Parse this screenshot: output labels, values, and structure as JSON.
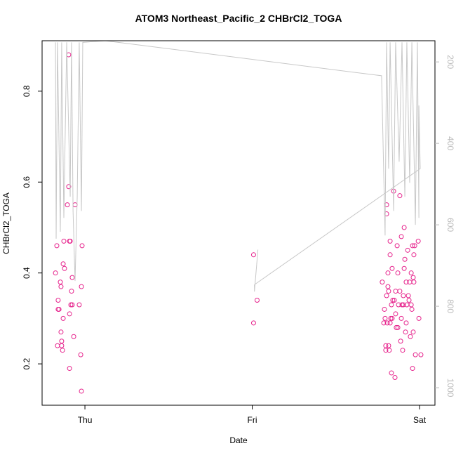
{
  "chart_data": {
    "type": "scatter",
    "title": "ATOM3 Northeast_Pacific_2 CHBrCl2_TOGA",
    "x_label": "Date",
    "y_label": "CHBrCl2_TOGA",
    "xlim": [
      -0.256,
      2.092
    ],
    "xticks": [
      {
        "value": 0,
        "label": "Thu"
      },
      {
        "value": 1,
        "label": "Fri"
      },
      {
        "value": 2,
        "label": "Sat"
      }
    ],
    "ylim": [
      0.109,
      0.911
    ],
    "yticks": [
      0.2,
      0.4,
      0.6,
      0.8
    ],
    "y2lim": [
      1043,
      148
    ],
    "y2ticks": [
      200,
      400,
      600,
      800,
      1000
    ],
    "y2_color": "#bbbbbb",
    "series": [
      {
        "type": "scatter",
        "color": "#e6238c",
        "x": [
          -0.176,
          -0.168,
          -0.164,
          -0.16,
          -0.16,
          -0.155,
          -0.147,
          -0.143,
          -0.143,
          -0.139,
          -0.139,
          -0.134,
          -0.13,
          -0.13,
          -0.126,
          -0.122,
          -0.105,
          -0.097,
          -0.097,
          -0.092,
          -0.088,
          -0.092,
          -0.092,
          -0.084,
          -0.08,
          -0.076,
          -0.076,
          -0.067,
          -0.059,
          -0.034,
          -0.025,
          -0.021,
          -0.017,
          -0.021,
          1.008,
          1.008,
          1.029,
          1.777,
          1.786,
          1.79,
          1.794,
          1.798,
          1.798,
          1.803,
          1.803,
          1.803,
          1.807,
          1.811,
          1.811,
          1.815,
          1.815,
          1.819,
          1.824,
          1.824,
          1.824,
          1.828,
          1.832,
          1.832,
          1.836,
          1.836,
          1.84,
          1.845,
          1.849,
          1.853,
          1.857,
          1.857,
          1.861,
          1.866,
          1.87,
          1.87,
          1.874,
          1.882,
          1.882,
          1.887,
          1.891,
          1.891,
          1.895,
          1.899,
          1.903,
          1.903,
          1.908,
          1.908,
          1.912,
          1.916,
          1.92,
          1.92,
          1.924,
          1.929,
          1.933,
          1.937,
          1.941,
          1.945,
          1.95,
          1.95,
          1.954,
          1.958,
          1.958,
          1.962,
          1.962,
          1.966,
          1.966,
          1.971,
          1.975,
          1.996,
          1.992,
          2.008
        ],
        "values": [
          0.4,
          0.46,
          0.24,
          0.32,
          0.34,
          0.32,
          0.38,
          0.27,
          0.37,
          0.25,
          0.24,
          0.23,
          0.42,
          0.3,
          0.47,
          0.41,
          0.55,
          0.88,
          0.59,
          0.47,
          0.47,
          0.31,
          0.19,
          0.33,
          0.36,
          0.39,
          0.33,
          0.26,
          0.55,
          0.33,
          0.22,
          0.37,
          0.46,
          0.14,
          0.44,
          0.29,
          0.34,
          0.38,
          0.29,
          0.32,
          0.3,
          0.24,
          0.23,
          0.55,
          0.53,
          0.35,
          0.29,
          0.4,
          0.37,
          0.24,
          0.36,
          0.23,
          0.47,
          0.44,
          0.29,
          0.3,
          0.18,
          0.33,
          0.3,
          0.41,
          0.34,
          0.58,
          0.34,
          0.17,
          0.31,
          0.36,
          0.28,
          0.46,
          0.28,
          0.4,
          0.33,
          0.57,
          0.36,
          0.25,
          0.48,
          0.3,
          0.33,
          0.23,
          0.35,
          0.33,
          0.5,
          0.41,
          0.43,
          0.27,
          0.38,
          0.29,
          0.33,
          0.45,
          0.35,
          0.34,
          0.38,
          0.26,
          0.4,
          0.33,
          0.32,
          0.19,
          0.46,
          0.39,
          0.27,
          0.44,
          0.38,
          0.46,
          0.22,
          0.3,
          0.47,
          0.22
        ]
      },
      {
        "type": "line",
        "axis": "y2",
        "color": "#c8c8c8",
        "x": [
          -0.176,
          -0.172,
          -0.164,
          -0.147,
          -0.139,
          -0.126,
          -0.109,
          -0.088,
          -0.08,
          -0.071,
          -0.059,
          -0.046,
          -0.034,
          -0.021,
          -0.013,
          0.122,
          1.773,
          1.794,
          1.803,
          1.815,
          1.824,
          1.845,
          1.857,
          1.878,
          1.895,
          1.912,
          1.924,
          1.941,
          1.954,
          1.975,
          1.987,
          1.996,
          1.996,
          2.004,
          1.013,
          1.013,
          1.034
        ],
        "values": [
          152,
          634,
          152,
          617,
          152,
          583,
          152,
          531,
          152,
          566,
          738,
          531,
          152,
          566,
          152,
          148,
          234,
          626,
          152,
          462,
          152,
          566,
          152,
          445,
          152,
          531,
          152,
          497,
          152,
          600,
          152,
          583,
          307,
          462,
          747,
          764,
          661
        ]
      }
    ]
  }
}
